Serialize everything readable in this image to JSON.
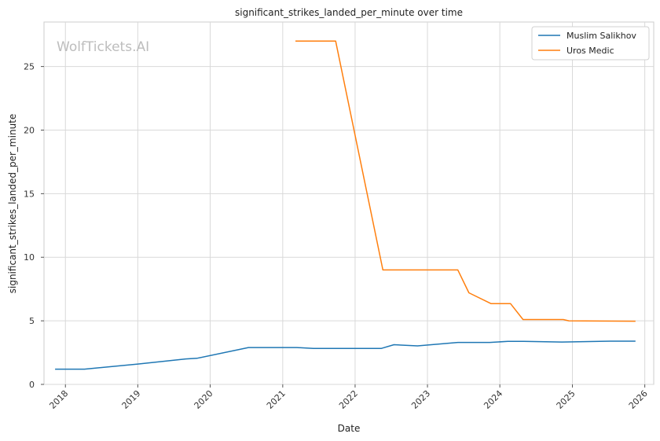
{
  "chart_data": {
    "type": "line",
    "title": "significant_strikes_landed_per_minute over time",
    "xlabel": "Date",
    "ylabel": "significant_strikes_landed_per_minute",
    "watermark": "WolfTickets.AI",
    "xlim": [
      "2017-09-15",
      "2026-02-15"
    ],
    "ylim": [
      0,
      28.5
    ],
    "xticks": [
      "2018",
      "2019",
      "2020",
      "2021",
      "2022",
      "2023",
      "2024",
      "2025",
      "2026"
    ],
    "yticks": [
      0,
      5,
      10,
      15,
      20,
      25
    ],
    "grid": true,
    "legend_position": "top-right",
    "series": [
      {
        "name": "Muslim Salikhov",
        "color": "#1f77b4",
        "points": [
          [
            "2017-11-10",
            1.2
          ],
          [
            "2018-04-07",
            1.2
          ],
          [
            "2019-01-01",
            1.6
          ],
          [
            "2019-08-31",
            2.0
          ],
          [
            "2019-10-26",
            2.05
          ],
          [
            "2020-07-12",
            2.9
          ],
          [
            "2021-03-13",
            2.9
          ],
          [
            "2021-06-05",
            2.83
          ],
          [
            "2022-05-14",
            2.83
          ],
          [
            "2022-07-16",
            3.12
          ],
          [
            "2022-11-12",
            3.03
          ],
          [
            "2023-06-03",
            3.3
          ],
          [
            "2023-11-11",
            3.3
          ],
          [
            "2024-02-10",
            3.38
          ],
          [
            "2024-05-01",
            3.38
          ],
          [
            "2024-11-09",
            3.33
          ],
          [
            "2025-07-12",
            3.4
          ],
          [
            "2025-11-15",
            3.4
          ]
        ]
      },
      {
        "name": "Uros Medic",
        "color": "#ff7f0e",
        "points": [
          [
            "2021-03-06",
            27.0
          ],
          [
            "2021-09-25",
            27.0
          ],
          [
            "2022-05-21",
            9.0
          ],
          [
            "2023-06-03",
            9.0
          ],
          [
            "2023-07-29",
            7.2
          ],
          [
            "2023-11-18",
            6.35
          ],
          [
            "2024-02-24",
            6.35
          ],
          [
            "2024-04-27",
            5.1
          ],
          [
            "2024-11-16",
            5.1
          ],
          [
            "2024-12-14",
            5.0
          ],
          [
            "2025-11-15",
            4.97
          ]
        ]
      }
    ]
  }
}
